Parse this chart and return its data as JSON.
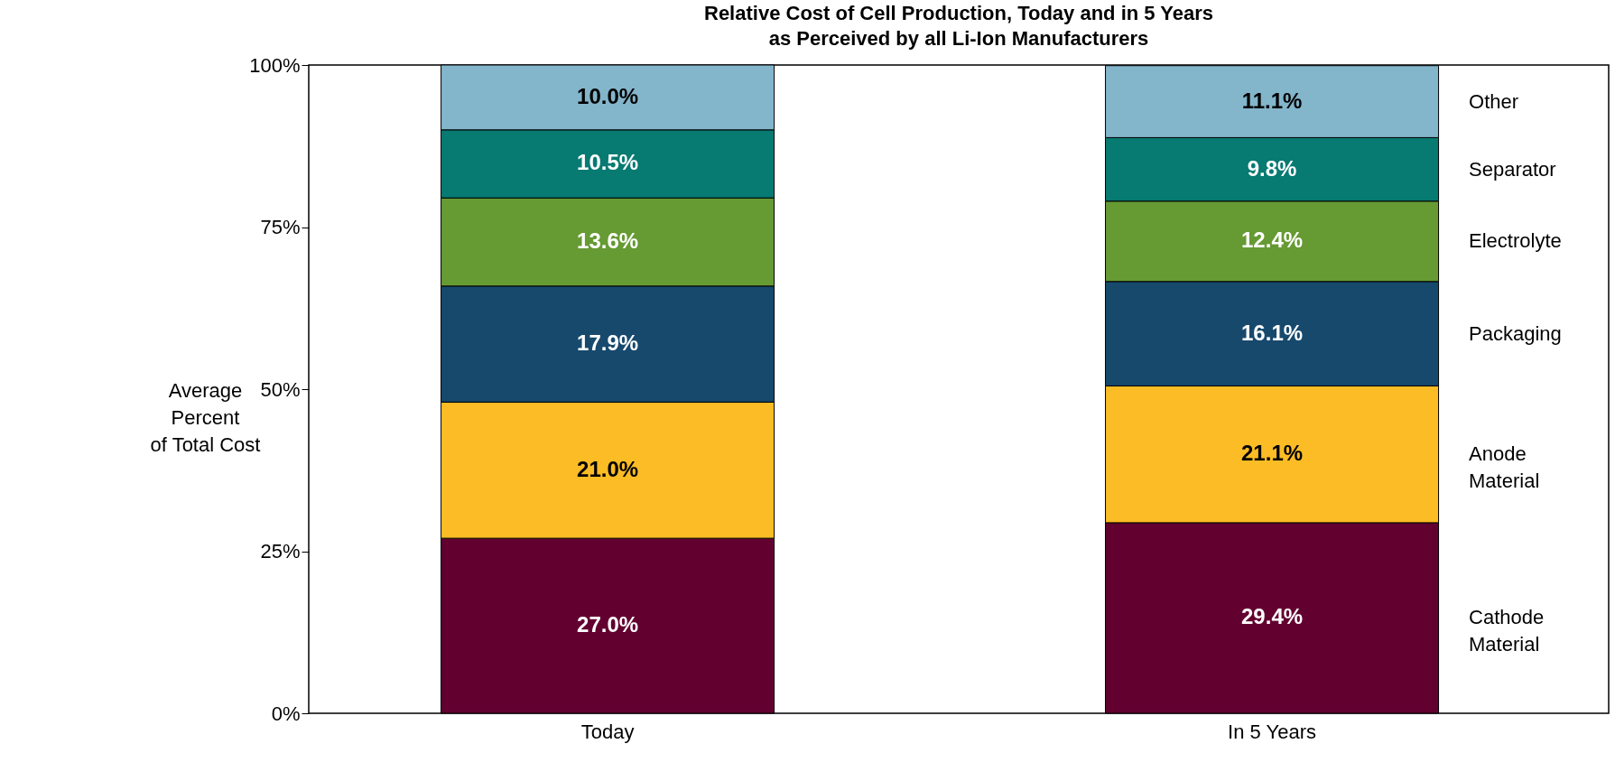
{
  "chart_data": {
    "type": "bar",
    "stacked": true,
    "title": "Relative Cost of Cell Production, Today and in 5 Years\nas Perceived by all Li-Ion Manufacturers",
    "ylabel": "Average\nPercent\nof Total Cost",
    "categories": [
      "Today",
      "In 5 Years"
    ],
    "series": [
      {
        "name": "Cathode Material",
        "color": "#620030",
        "values": [
          27.0,
          29.4
        ],
        "value_labels": [
          "27.0%",
          "29.4%"
        ]
      },
      {
        "name": "Anode Material",
        "color": "#fbbc25",
        "values": [
          21.0,
          21.1
        ],
        "value_labels": [
          "21.0%",
          "21.1%"
        ]
      },
      {
        "name": "Packaging",
        "color": "#17496d",
        "values": [
          17.9,
          16.1
        ],
        "value_labels": [
          "17.9%",
          "16.1%"
        ]
      },
      {
        "name": "Electrolyte",
        "color": "#669a33",
        "values": [
          13.6,
          12.4
        ],
        "value_labels": [
          "13.6%",
          "12.4%"
        ]
      },
      {
        "name": "Separator",
        "color": "#077a72",
        "values": [
          10.5,
          9.8
        ],
        "value_labels": [
          "10.5%",
          "9.8%"
        ]
      },
      {
        "name": "Other",
        "color": "#83b5cb",
        "values": [
          10.0,
          11.1
        ],
        "value_labels": [
          "10.0%",
          "11.1%"
        ]
      }
    ],
    "ylim": [
      0,
      100
    ],
    "yticks": [
      {
        "value": 0,
        "label": "0%"
      },
      {
        "value": 25,
        "label": "25%"
      },
      {
        "value": 50,
        "label": "50%"
      },
      {
        "value": 75,
        "label": "75%"
      },
      {
        "value": 100,
        "label": "100%"
      }
    ],
    "grid": false,
    "legend": "right"
  }
}
